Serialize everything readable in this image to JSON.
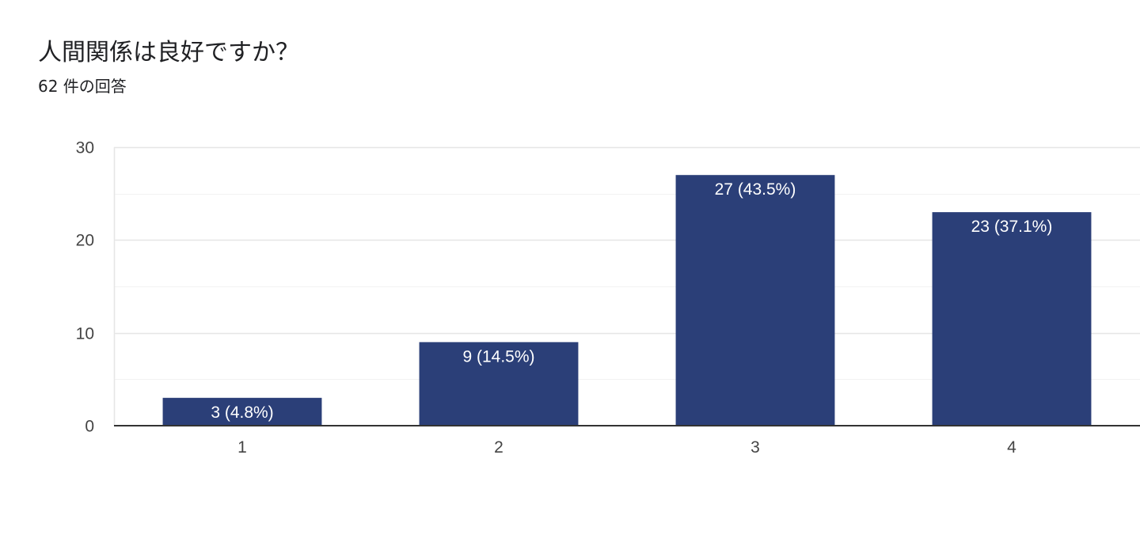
{
  "question": {
    "title": "人間関係は良好ですか？",
    "response_count": "62 件の回答"
  },
  "colors": {
    "bar": "#2b3f78",
    "gridline": "#e6e6e6",
    "minor_gridline": "#f2f2f2",
    "baseline": "#333333"
  },
  "chart_data": {
    "type": "bar",
    "categories": [
      "1",
      "2",
      "3",
      "4"
    ],
    "values": [
      3,
      9,
      27,
      23
    ],
    "data_labels": [
      "3 (4.8%)",
      "9 (14.5%)",
      "27 (43.5%)",
      "23 (37.1%)"
    ],
    "title": "人間関係は良好ですか？",
    "subtitle": "62 件の回答",
    "xlabel": "",
    "ylabel": "",
    "ylim": [
      0,
      30
    ],
    "yticks": [
      0,
      10,
      20,
      30
    ],
    "minor_gridlines": [
      5,
      15,
      25
    ],
    "grid": true,
    "legend": "none"
  }
}
